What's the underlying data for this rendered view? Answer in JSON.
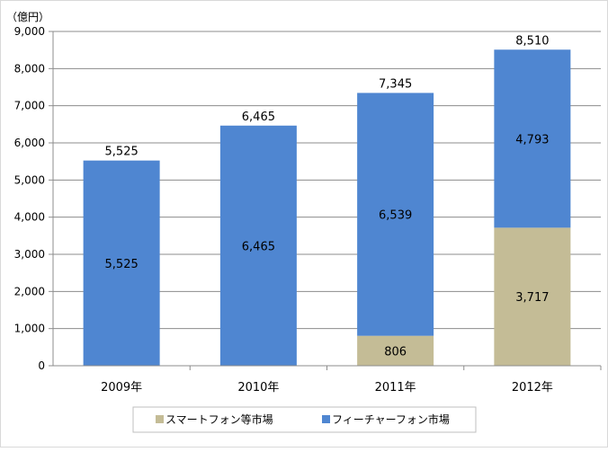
{
  "chart_data": {
    "type": "bar",
    "stacked": true,
    "unit_label": "（億円）",
    "categories": [
      "2009年",
      "2010年",
      "2011年",
      "2012年"
    ],
    "series": [
      {
        "name": "スマートフォン等市場",
        "values": [
          0,
          0,
          806,
          3717
        ],
        "color": "#c4bc96"
      },
      {
        "name": "フィーチャーフォン市場",
        "values": [
          5525,
          6465,
          6539,
          4793
        ],
        "color": "#4f86d1"
      }
    ],
    "totals": [
      5525,
      6465,
      7345,
      8510
    ],
    "ylim": [
      0,
      9000
    ],
    "yticks": [
      "0",
      "1,000",
      "2,000",
      "3,000",
      "4,000",
      "5,000",
      "6,000",
      "7,000",
      "8,000",
      "9,000"
    ],
    "grid": true,
    "legend_position": "bottom"
  }
}
